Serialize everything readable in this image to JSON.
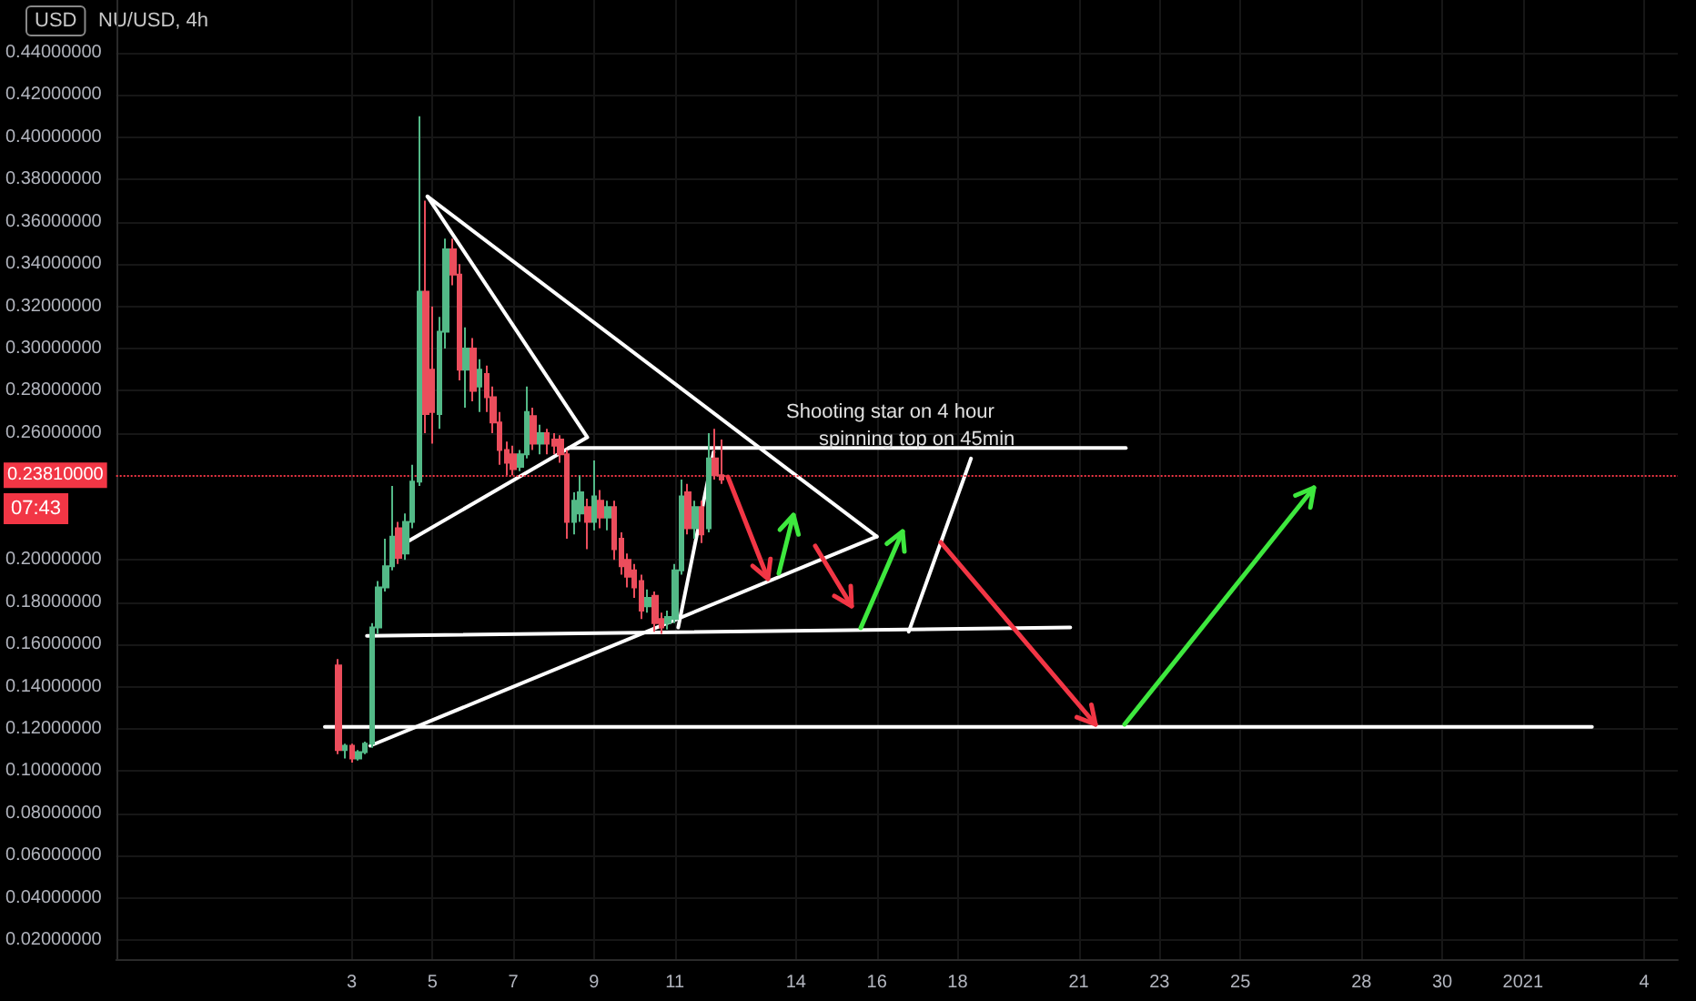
{
  "chart_data": {
    "type": "candlestick",
    "title": "NU/USD, 4h",
    "x": [
      "2020-12-02T16:00",
      "2020-12-02T20:00",
      "2020-12-03T00:00",
      "2020-12-03T04:00",
      "2020-12-03T08:00",
      "2020-12-03T12:00",
      "2020-12-03T16:00",
      "2020-12-03T20:00",
      "2020-12-04T00:00",
      "2020-12-04T04:00",
      "2020-12-04T08:00",
      "2020-12-04T12:00",
      "2020-12-04T16:00",
      "2020-12-04T20:00",
      "2020-12-05T00:00",
      "2020-12-05T04:00",
      "2020-12-05T08:00",
      "2020-12-05T12:00",
      "2020-12-05T16:00",
      "2020-12-05T20:00",
      "2020-12-06T00:00",
      "2020-12-06T04:00",
      "2020-12-06T08:00",
      "2020-12-06T12:00",
      "2020-12-06T16:00",
      "2020-12-06T20:00",
      "2020-12-07T00:00",
      "2020-12-07T04:00",
      "2020-12-07T08:00",
      "2020-12-07T12:00",
      "2020-12-07T16:00",
      "2020-12-07T20:00",
      "2020-12-08T00:00",
      "2020-12-08T04:00",
      "2020-12-08T08:00",
      "2020-12-08T12:00",
      "2020-12-08T16:00",
      "2020-12-08T20:00",
      "2020-12-09T00:00",
      "2020-12-09T04:00",
      "2020-12-09T08:00",
      "2020-12-09T12:00",
      "2020-12-09T16:00",
      "2020-12-09T20:00",
      "2020-12-10T00:00",
      "2020-12-10T04:00",
      "2020-12-10T08:00",
      "2020-12-10T12:00",
      "2020-12-10T16:00",
      "2020-12-10T20:00",
      "2020-12-11T00:00",
      "2020-12-11T04:00",
      "2020-12-11T08:00",
      "2020-12-11T12:00",
      "2020-12-11T16:00",
      "2020-12-11T20:00",
      "2020-12-12T00:00",
      "2020-12-12T04:00"
    ],
    "ohlc": [
      [
        0.15,
        0.153,
        0.108,
        0.11
      ],
      [
        0.11,
        0.113,
        0.106,
        0.112
      ],
      [
        0.112,
        0.113,
        0.104,
        0.106
      ],
      [
        0.106,
        0.11,
        0.105,
        0.109
      ],
      [
        0.109,
        0.114,
        0.108,
        0.113
      ],
      [
        0.113,
        0.17,
        0.111,
        0.168
      ],
      [
        0.168,
        0.19,
        0.165,
        0.187
      ],
      [
        0.187,
        0.21,
        0.185,
        0.197
      ],
      [
        0.197,
        0.235,
        0.195,
        0.211
      ],
      [
        0.215,
        0.218,
        0.198,
        0.201
      ],
      [
        0.203,
        0.222,
        0.2,
        0.218
      ],
      [
        0.218,
        0.245,
        0.215,
        0.237
      ],
      [
        0.237,
        0.41,
        0.235,
        0.327
      ],
      [
        0.327,
        0.37,
        0.26,
        0.269
      ],
      [
        0.29,
        0.32,
        0.255,
        0.27
      ],
      [
        0.269,
        0.315,
        0.262,
        0.308
      ],
      [
        0.308,
        0.352,
        0.3,
        0.347
      ],
      [
        0.347,
        0.352,
        0.33,
        0.335
      ],
      [
        0.335,
        0.34,
        0.285,
        0.29
      ],
      [
        0.29,
        0.31,
        0.272,
        0.3
      ],
      [
        0.3,
        0.305,
        0.275,
        0.28
      ],
      [
        0.282,
        0.295,
        0.27,
        0.29
      ],
      [
        0.288,
        0.292,
        0.27,
        0.277
      ],
      [
        0.277,
        0.282,
        0.26,
        0.265
      ],
      [
        0.265,
        0.27,
        0.245,
        0.252
      ],
      [
        0.252,
        0.256,
        0.24,
        0.246
      ],
      [
        0.25,
        0.254,
        0.24,
        0.243
      ],
      [
        0.244,
        0.252,
        0.242,
        0.25
      ],
      [
        0.25,
        0.282,
        0.248,
        0.27
      ],
      [
        0.268,
        0.272,
        0.252,
        0.255
      ],
      [
        0.255,
        0.264,
        0.25,
        0.26
      ],
      [
        0.26,
        0.262,
        0.25,
        0.255
      ],
      [
        0.257,
        0.26,
        0.25,
        0.254
      ],
      [
        0.257,
        0.259,
        0.246,
        0.25
      ],
      [
        0.25,
        0.252,
        0.21,
        0.218
      ],
      [
        0.218,
        0.232,
        0.212,
        0.228
      ],
      [
        0.222,
        0.24,
        0.218,
        0.232
      ],
      [
        0.225,
        0.229,
        0.205,
        0.218
      ],
      [
        0.218,
        0.247,
        0.214,
        0.23
      ],
      [
        0.228,
        0.233,
        0.215,
        0.22
      ],
      [
        0.22,
        0.228,
        0.214,
        0.225
      ],
      [
        0.225,
        0.228,
        0.2,
        0.205
      ],
      [
        0.21,
        0.213,
        0.193,
        0.197
      ],
      [
        0.2,
        0.203,
        0.187,
        0.192
      ],
      [
        0.195,
        0.198,
        0.182,
        0.187
      ],
      [
        0.19,
        0.193,
        0.172,
        0.176
      ],
      [
        0.178,
        0.186,
        0.175,
        0.182
      ],
      [
        0.183,
        0.185,
        0.166,
        0.17
      ],
      [
        0.172,
        0.175,
        0.165,
        0.168
      ],
      [
        0.17,
        0.176,
        0.167,
        0.173
      ],
      [
        0.172,
        0.198,
        0.17,
        0.195
      ],
      [
        0.195,
        0.238,
        0.193,
        0.23
      ],
      [
        0.232,
        0.236,
        0.212,
        0.215
      ],
      [
        0.215,
        0.228,
        0.21,
        0.225
      ],
      [
        0.225,
        0.228,
        0.208,
        0.212
      ],
      [
        0.215,
        0.26,
        0.213,
        0.248
      ],
      [
        0.248,
        0.262,
        0.238,
        0.24
      ],
      [
        0.24,
        0.257,
        0.236,
        0.238
      ]
    ],
    "colors": [
      "#eb4d5c",
      "#53b987",
      "#eb4d5c",
      "#53b987",
      "#53b987",
      "#53b987",
      "#53b987",
      "#53b987",
      "#53b987",
      "#eb4d5c",
      "#53b987",
      "#53b987",
      "#53b987",
      "#eb4d5c",
      "#eb4d5c",
      "#53b987",
      "#53b987",
      "#eb4d5c",
      "#eb4d5c",
      "#53b987",
      "#eb4d5c",
      "#53b987",
      "#eb4d5c",
      "#eb4d5c",
      "#eb4d5c",
      "#eb4d5c",
      "#eb4d5c",
      "#53b987",
      "#53b987",
      "#eb4d5c",
      "#53b987",
      "#eb4d5c",
      "#eb4d5c",
      "#eb4d5c",
      "#eb4d5c",
      "#53b987",
      "#53b987",
      "#eb4d5c",
      "#53b987",
      "#eb4d5c",
      "#53b987",
      "#eb4d5c",
      "#eb4d5c",
      "#eb4d5c",
      "#eb4d5c",
      "#eb4d5c",
      "#53b987",
      "#eb4d5c",
      "#eb4d5c",
      "#53b987",
      "#53b987",
      "#53b987",
      "#eb4d5c",
      "#53b987",
      "#eb4d5c",
      "#53b987",
      "#eb4d5c",
      "#eb4d5c"
    ],
    "series": [
      {
        "type": "line",
        "color": "#ffffff",
        "x": [
          "2020-12-02T08:00",
          "2021-01-02T17:00"
        ],
        "values": [
          0.121,
          0.121
        ]
      },
      {
        "type": "line",
        "color": "#ffffff",
        "x": [
          "2020-12-03T09:00",
          "2020-12-20T19:00"
        ],
        "values": [
          0.164,
          0.168
        ]
      },
      {
        "type": "line",
        "color": "#ffffff",
        "x": [
          "2020-12-08T09:00",
          "2020-12-22T04:00"
        ],
        "values": [
          0.253,
          0.253
        ]
      },
      {
        "type": "line",
        "color": "#ffffff",
        "x": [
          "2020-12-03T11:00",
          "2020-12-16T00:00"
        ],
        "values": [
          0.112,
          0.211
        ]
      },
      {
        "type": "line",
        "color": "#ffffff",
        "x": [
          "2020-12-04T21:00",
          "2020-12-16T00:00"
        ],
        "values": [
          0.372,
          0.211
        ]
      },
      {
        "type": "line",
        "color": "#ffffff",
        "x": [
          "2020-12-04T21:00",
          "2020-12-08T20:00",
          "2020-12-04T10:00"
        ],
        "values": [
          0.372,
          0.258,
          0.209
        ]
      },
      {
        "type": "line",
        "color": "#ffffff",
        "x": [
          "2020-12-11T02:00",
          "2020-12-11T23:00"
        ],
        "values": [
          0.168,
          0.251
        ]
      },
      {
        "type": "line",
        "color": "#ffffff",
        "x": [
          "2020-12-16T19:00",
          "2020-12-18T08:00"
        ],
        "values": [
          0.166,
          0.248
        ]
      }
    ],
    "marker": "none",
    "line_style": "solid",
    "ref_lines": [
      {
        "axis": "y",
        "value": 0.2381,
        "label": "0.23810000",
        "color": "#f23645",
        "line_style": "dotted"
      }
    ],
    "annotations": [
      "USD",
      "07:43",
      "Shooting star on 4 hour",
      "spinning top on 45min"
    ],
    "xlim": [
      "2020-11-27T04:00",
      "2021-01-04T20:00"
    ],
    "xticks": [
      {
        "value": "2020-12-03",
        "label": "3"
      },
      {
        "value": "2020-12-05",
        "label": "5"
      },
      {
        "value": "2020-12-07",
        "label": "7"
      },
      {
        "value": "2020-12-09",
        "label": "9"
      },
      {
        "value": "2020-12-11",
        "label": "11"
      },
      {
        "value": "2020-12-14",
        "label": "14"
      },
      {
        "value": "2020-12-16",
        "label": "16"
      },
      {
        "value": "2020-12-18",
        "label": "18"
      },
      {
        "value": "2020-12-21",
        "label": "21"
      },
      {
        "value": "2020-12-23",
        "label": "23"
      },
      {
        "value": "2020-12-25",
        "label": "25"
      },
      {
        "value": "2020-12-28",
        "label": "28"
      },
      {
        "value": "2020-12-30",
        "label": "30"
      },
      {
        "value": "2021-01-01",
        "label": "2021"
      },
      {
        "value": "2021-01-04",
        "label": "4"
      }
    ],
    "ylim": [
      0.011,
      0.465
    ],
    "yticks": [
      {
        "value": 0.02,
        "label": "0.02000000"
      },
      {
        "value": 0.04,
        "label": "0.04000000"
      },
      {
        "value": 0.06,
        "label": "0.06000000"
      },
      {
        "value": 0.08,
        "label": "0.08000000"
      },
      {
        "value": 0.1,
        "label": "0.10000000"
      },
      {
        "value": 0.12,
        "label": "0.12000000"
      },
      {
        "value": 0.14,
        "label": "0.14000000"
      },
      {
        "value": 0.16,
        "label": "0.16000000"
      },
      {
        "value": 0.18,
        "label": "0.18000000"
      },
      {
        "value": 0.2,
        "label": "0.20000000"
      },
      {
        "value": 0.26,
        "label": "0.26000000"
      },
      {
        "value": 0.28,
        "label": "0.28000000"
      },
      {
        "value": 0.3,
        "label": "0.30000000"
      },
      {
        "value": 0.32,
        "label": "0.32000000"
      },
      {
        "value": 0.34,
        "label": "0.34000000"
      },
      {
        "value": 0.36,
        "label": "0.36000000"
      },
      {
        "value": 0.38,
        "label": "0.38000000"
      },
      {
        "value": 0.4,
        "label": "0.40000000"
      },
      {
        "value": 0.42,
        "label": "0.42000000"
      },
      {
        "value": 0.44,
        "label": "0.44000000"
      }
    ],
    "grid": true
  }
}
